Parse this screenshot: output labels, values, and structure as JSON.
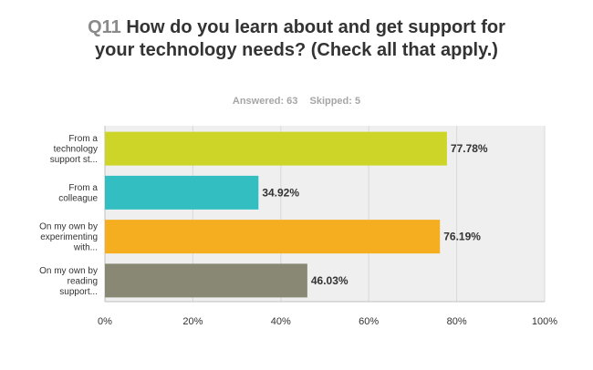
{
  "title": {
    "question_number": "Q11",
    "text": "How do you learn about and get support for your technology needs? (Check all that apply.)"
  },
  "summary": {
    "answered": "Answered: 63",
    "skipped": "Skipped: 5"
  },
  "chart_data": {
    "type": "bar",
    "orientation": "horizontal",
    "categories": [
      [
        "From a",
        "technology",
        "support st..."
      ],
      [
        "From a",
        "colleague"
      ],
      [
        "On my own by",
        "experimenting",
        "with..."
      ],
      [
        "On my own by",
        "reading",
        "support..."
      ]
    ],
    "values": [
      77.78,
      34.92,
      76.19,
      46.03
    ],
    "value_labels": [
      "77.78%",
      "34.92%",
      "76.19%",
      "46.03%"
    ],
    "colors": [
      "#cdd628",
      "#33bec1",
      "#f5ae1f",
      "#888874"
    ],
    "xlim": [
      0,
      100
    ],
    "xticks": [
      "0%",
      "20%",
      "40%",
      "60%",
      "80%",
      "100%"
    ],
    "grid": true,
    "legend": "none",
    "plot_background": "#efefef"
  }
}
